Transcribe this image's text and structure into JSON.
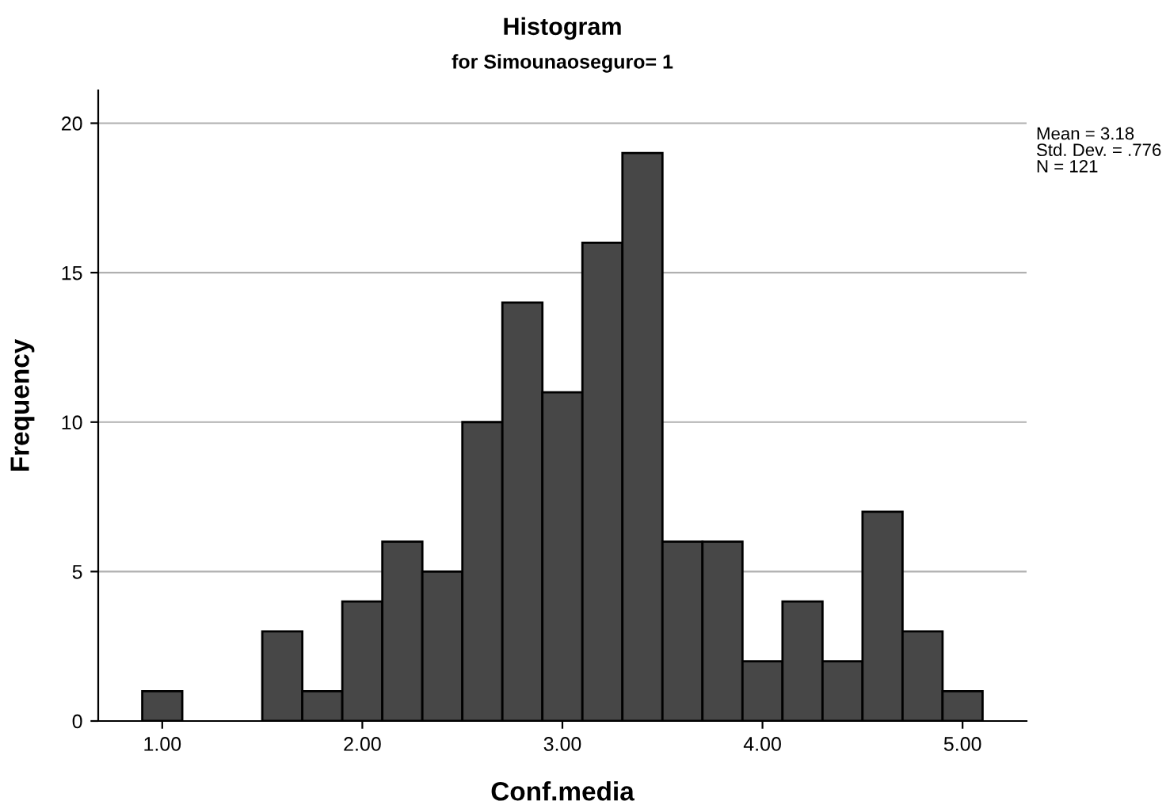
{
  "chart_data": {
    "type": "histogram",
    "title": "Histogram",
    "subtitle": "for Simounaoseguro= 1",
    "xlabel": "Conf.media",
    "ylabel": "Frequency",
    "bins": [
      0.9,
      1.1,
      1.3,
      1.5,
      1.7,
      1.9,
      2.1,
      2.3,
      2.5,
      2.7,
      2.9,
      3.1,
      3.3,
      3.5,
      3.7,
      3.9,
      4.1,
      4.3,
      4.5,
      4.7,
      4.9,
      5.1
    ],
    "values": [
      1,
      0,
      0,
      3,
      1,
      4,
      6,
      5,
      10,
      14,
      11,
      16,
      19,
      6,
      6,
      2,
      4,
      2,
      7,
      3,
      1
    ],
    "color": "#474747",
    "xlim": [
      0.68,
      5.32
    ],
    "xticks": [
      {
        "value": 1,
        "label": "1.00"
      },
      {
        "value": 2,
        "label": "2.00"
      },
      {
        "value": 3,
        "label": "3.00"
      },
      {
        "value": 4,
        "label": "4.00"
      },
      {
        "value": 5,
        "label": "5.00"
      }
    ],
    "ylim": [
      0,
      21.1
    ],
    "yticks": [
      0,
      5,
      10,
      15,
      20
    ],
    "grid": "y",
    "annotations": [
      "Mean = 3.18\nStd. Dev. = .776\nN = 121"
    ]
  }
}
